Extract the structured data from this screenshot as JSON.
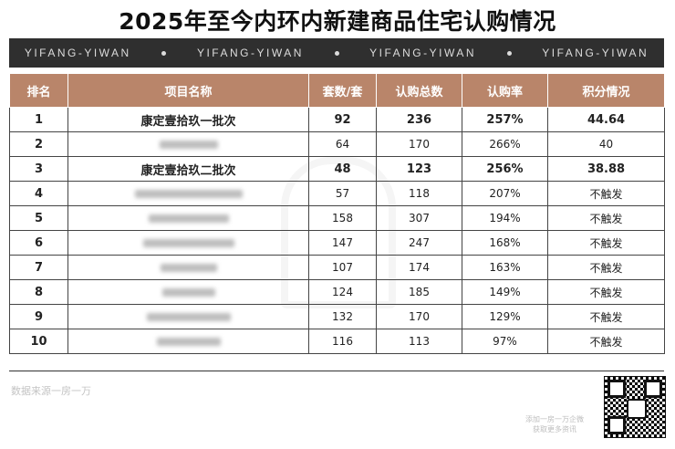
{
  "title": "2025年至今内环内新建商品住宅认购情况",
  "banner": {
    "items": [
      "YIFANG-YIWAN",
      "YIFANG-YIWAN",
      "YIFANG-YIWAN",
      "YIFANG-YIWAN"
    ]
  },
  "table": {
    "headers": [
      "排名",
      "项目名称",
      "套数/套",
      "认购总数",
      "认购率",
      "积分情况"
    ],
    "rows": [
      {
        "rank": "1",
        "name": "康定壹拾玖一批次",
        "units": "92",
        "total": "236",
        "rate": "257%",
        "score": "44.64",
        "highlight": true
      },
      {
        "rank": "2",
        "name": "上海■■",
        "units": "64",
        "total": "170",
        "rate": "266%",
        "score": "40",
        "highlight": false
      },
      {
        "rank": "3",
        "name": "康定壹拾玖二批次",
        "units": "48",
        "total": "123",
        "rate": "256%",
        "score": "38.88",
        "highlight": true
      },
      {
        "rank": "4",
        "name": "",
        "units": "57",
        "total": "118",
        "rate": "207%",
        "score": "不触发",
        "highlight": false
      },
      {
        "rank": "5",
        "name": "",
        "units": "158",
        "total": "307",
        "rate": "194%",
        "score": "不触发",
        "highlight": false
      },
      {
        "rank": "6",
        "name": "",
        "units": "147",
        "total": "247",
        "rate": "168%",
        "score": "不触发",
        "highlight": false
      },
      {
        "rank": "7",
        "name": "上海■■",
        "units": "107",
        "total": "174",
        "rate": "163%",
        "score": "不触发",
        "highlight": false
      },
      {
        "rank": "8",
        "name": "上海■■",
        "units": "124",
        "total": "185",
        "rate": "149%",
        "score": "不触发",
        "highlight": false
      },
      {
        "rank": "9",
        "name": "",
        "units": "132",
        "total": "170",
        "rate": "129%",
        "score": "不触发",
        "highlight": false
      },
      {
        "rank": "10",
        "name": "",
        "units": "116",
        "total": "113",
        "rate": "97%",
        "score": "不触发",
        "highlight": false
      }
    ]
  },
  "footer": {
    "source": "数据来源一房一万",
    "qr_caption_line1": "添加一房一万企微",
    "qr_caption_line2": "获取更多资讯"
  },
  "colors": {
    "header_bg": "#b9856a",
    "banner_bg": "#2f2f2f"
  }
}
